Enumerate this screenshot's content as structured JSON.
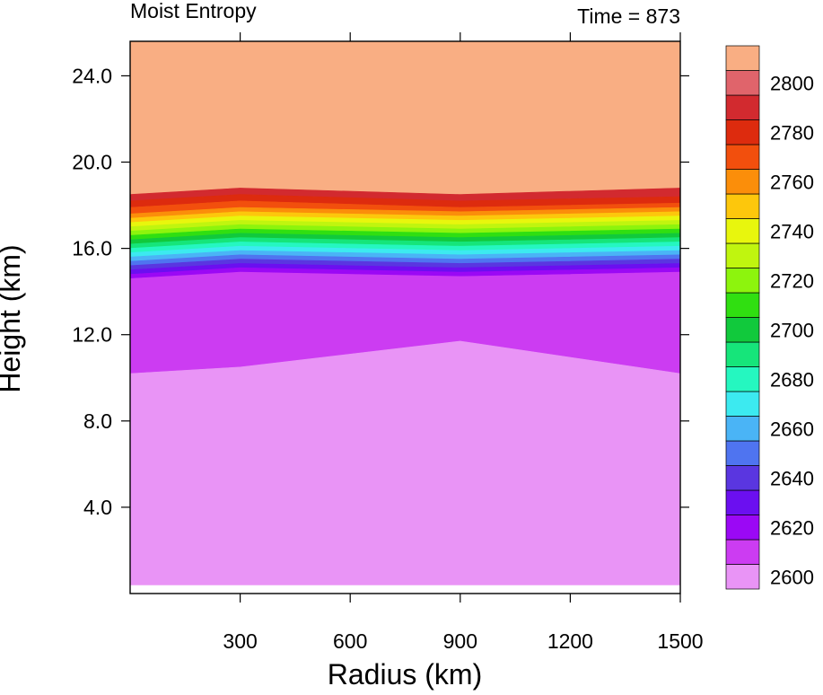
{
  "chart_data": {
    "type": "heatmap",
    "title_left": "Moist Entropy",
    "title_right": "Time = 873",
    "xlabel": "Radius (km)",
    "ylabel": "Height (km)",
    "xlim": [
      0,
      1500
    ],
    "ylim": [
      0,
      25.6
    ],
    "x_ticks": [
      {
        "value": 300,
        "label": "300"
      },
      {
        "value": 600,
        "label": "600"
      },
      {
        "value": 900,
        "label": "900"
      },
      {
        "value": 1200,
        "label": "1200"
      },
      {
        "value": 1500,
        "label": "1500"
      }
    ],
    "y_ticks": [
      {
        "value": 4,
        "label": "4.0"
      },
      {
        "value": 8,
        "label": "8.0"
      },
      {
        "value": 12,
        "label": "12.0"
      },
      {
        "value": 16,
        "label": "16.0"
      },
      {
        "value": 20,
        "label": "20.0"
      },
      {
        "value": 24,
        "label": "24.0"
      }
    ],
    "colorbar_levels": [
      {
        "color": "#e994f6",
        "label": "2600"
      },
      {
        "color": "#cc3cf2",
        "label": ""
      },
      {
        "color": "#9b08f5",
        "label": "2620"
      },
      {
        "color": "#6b0ff0",
        "label": ""
      },
      {
        "color": "#5a36e0",
        "label": "2640"
      },
      {
        "color": "#4f74f0",
        "label": ""
      },
      {
        "color": "#4ab4f6",
        "label": "2660"
      },
      {
        "color": "#3ceaf0",
        "label": ""
      },
      {
        "color": "#25f7c0",
        "label": "2680"
      },
      {
        "color": "#16e57a",
        "label": ""
      },
      {
        "color": "#11c93c",
        "label": "2700"
      },
      {
        "color": "#30df11",
        "label": ""
      },
      {
        "color": "#8df40d",
        "label": "2720"
      },
      {
        "color": "#c0f50f",
        "label": ""
      },
      {
        "color": "#e8f60d",
        "label": "2740"
      },
      {
        "color": "#fdc70c",
        "label": ""
      },
      {
        "color": "#fb8e0a",
        "label": "2760"
      },
      {
        "color": "#f24f0d",
        "label": ""
      },
      {
        "color": "#dd2b0e",
        "label": "2780"
      },
      {
        "color": "#d22a2f",
        "label": ""
      },
      {
        "color": "#e0646b",
        "label": "2800"
      },
      {
        "color": "#f9ae83",
        "label": ""
      }
    ],
    "bands": [
      {
        "level": 21,
        "rings": [
          [
            [
              0,
              25.6
            ],
            [
              1500,
              25.6
            ],
            [
              1500,
              18.8
            ],
            [
              900,
              18.5
            ],
            [
              300,
              18.8
            ],
            [
              0,
              18.5
            ]
          ]
        ]
      },
      {
        "level": 19,
        "rings": [
          [
            [
              0,
              18.5
            ],
            [
              300,
              18.8
            ],
            [
              900,
              18.5
            ],
            [
              1500,
              18.8
            ],
            [
              1500,
              18.4
            ],
            [
              900,
              18.2
            ],
            [
              300,
              18.5
            ],
            [
              0,
              18.2
            ]
          ]
        ]
      },
      {
        "level": 18,
        "rings": [
          [
            [
              0,
              18.2
            ],
            [
              300,
              18.5
            ],
            [
              900,
              18.2
            ],
            [
              1500,
              18.4
            ],
            [
              1500,
              18.1
            ],
            [
              900,
              17.9
            ],
            [
              300,
              18.2
            ],
            [
              0,
              17.9
            ]
          ]
        ]
      },
      {
        "level": 17,
        "rings": [
          [
            [
              0,
              17.9
            ],
            [
              300,
              18.2
            ],
            [
              900,
              17.9
            ],
            [
              1500,
              18.1
            ],
            [
              1500,
              17.9
            ],
            [
              900,
              17.7
            ],
            [
              300,
              17.9
            ],
            [
              0,
              17.6
            ]
          ]
        ]
      },
      {
        "level": 16,
        "rings": [
          [
            [
              0,
              17.6
            ],
            [
              300,
              17.9
            ],
            [
              900,
              17.7
            ],
            [
              1500,
              17.9
            ],
            [
              1500,
              17.7
            ],
            [
              900,
              17.5
            ],
            [
              300,
              17.7
            ],
            [
              0,
              17.4
            ]
          ]
        ]
      },
      {
        "level": 15,
        "rings": [
          [
            [
              0,
              17.4
            ],
            [
              300,
              17.7
            ],
            [
              900,
              17.5
            ],
            [
              1500,
              17.7
            ],
            [
              1500,
              17.5
            ],
            [
              900,
              17.3
            ],
            [
              300,
              17.5
            ],
            [
              0,
              17.2
            ]
          ]
        ]
      },
      {
        "level": 14,
        "rings": [
          [
            [
              0,
              17.2
            ],
            [
              300,
              17.5
            ],
            [
              900,
              17.3
            ],
            [
              1500,
              17.5
            ],
            [
              1500,
              17.3
            ],
            [
              900,
              17.1
            ],
            [
              300,
              17.3
            ],
            [
              0,
              17.0
            ]
          ]
        ]
      },
      {
        "level": 13,
        "rings": [
          [
            [
              0,
              17.0
            ],
            [
              300,
              17.3
            ],
            [
              900,
              17.1
            ],
            [
              1500,
              17.3
            ],
            [
              1500,
              17.1
            ],
            [
              900,
              16.9
            ],
            [
              300,
              17.1
            ],
            [
              0,
              16.8
            ]
          ]
        ]
      },
      {
        "level": 12,
        "rings": [
          [
            [
              0,
              16.8
            ],
            [
              300,
              17.1
            ],
            [
              900,
              16.9
            ],
            [
              1500,
              17.1
            ],
            [
              1500,
              16.9
            ],
            [
              900,
              16.7
            ],
            [
              300,
              16.9
            ],
            [
              0,
              16.6
            ]
          ]
        ]
      },
      {
        "level": 11,
        "rings": [
          [
            [
              0,
              16.6
            ],
            [
              300,
              16.9
            ],
            [
              900,
              16.7
            ],
            [
              1500,
              16.9
            ],
            [
              1500,
              16.7
            ],
            [
              900,
              16.5
            ],
            [
              300,
              16.7
            ],
            [
              0,
              16.4
            ]
          ]
        ]
      },
      {
        "level": 10,
        "rings": [
          [
            [
              0,
              16.4
            ],
            [
              300,
              16.7
            ],
            [
              900,
              16.5
            ],
            [
              1500,
              16.7
            ],
            [
              1500,
              16.5
            ],
            [
              900,
              16.3
            ],
            [
              300,
              16.5
            ],
            [
              0,
              16.2
            ]
          ]
        ]
      },
      {
        "level": 9,
        "rings": [
          [
            [
              0,
              16.2
            ],
            [
              300,
              16.5
            ],
            [
              900,
              16.3
            ],
            [
              1500,
              16.5
            ],
            [
              1500,
              16.3
            ],
            [
              900,
              16.1
            ],
            [
              300,
              16.3
            ],
            [
              0,
              16.0
            ]
          ]
        ]
      },
      {
        "level": 8,
        "rings": [
          [
            [
              0,
              16.0
            ],
            [
              300,
              16.3
            ],
            [
              900,
              16.1
            ],
            [
              1500,
              16.3
            ],
            [
              1500,
              16.1
            ],
            [
              900,
              15.9
            ],
            [
              300,
              16.1
            ],
            [
              0,
              15.8
            ]
          ]
        ]
      },
      {
        "level": 7,
        "rings": [
          [
            [
              0,
              15.8
            ],
            [
              300,
              16.1
            ],
            [
              900,
              15.9
            ],
            [
              1500,
              16.1
            ],
            [
              1500,
              15.9
            ],
            [
              900,
              15.7
            ],
            [
              300,
              15.9
            ],
            [
              0,
              15.6
            ]
          ]
        ]
      },
      {
        "level": 6,
        "rings": [
          [
            [
              0,
              15.6
            ],
            [
              300,
              15.9
            ],
            [
              900,
              15.7
            ],
            [
              1500,
              15.9
            ],
            [
              1500,
              15.7
            ],
            [
              900,
              15.5
            ],
            [
              300,
              15.7
            ],
            [
              0,
              15.4
            ]
          ]
        ]
      },
      {
        "level": 5,
        "rings": [
          [
            [
              0,
              15.4
            ],
            [
              300,
              15.7
            ],
            [
              900,
              15.5
            ],
            [
              1500,
              15.7
            ],
            [
              1500,
              15.5
            ],
            [
              900,
              15.3
            ],
            [
              300,
              15.5
            ],
            [
              0,
              15.2
            ]
          ]
        ]
      },
      {
        "level": 4,
        "rings": [
          [
            [
              0,
              15.2
            ],
            [
              300,
              15.5
            ],
            [
              900,
              15.3
            ],
            [
              1500,
              15.5
            ],
            [
              1500,
              15.3
            ],
            [
              900,
              15.1
            ],
            [
              300,
              15.3
            ],
            [
              0,
              15.0
            ]
          ]
        ]
      },
      {
        "level": 3,
        "rings": [
          [
            [
              0,
              15.0
            ],
            [
              300,
              15.3
            ],
            [
              900,
              15.1
            ],
            [
              1500,
              15.3
            ],
            [
              1500,
              15.1
            ],
            [
              900,
              14.9
            ],
            [
              300,
              15.1
            ],
            [
              0,
              14.8
            ]
          ]
        ]
      },
      {
        "level": 2,
        "rings": [
          [
            [
              0,
              14.8
            ],
            [
              300,
              15.1
            ],
            [
              900,
              14.9
            ],
            [
              1500,
              15.1
            ],
            [
              1500,
              14.9
            ],
            [
              900,
              14.7
            ],
            [
              300,
              14.9
            ],
            [
              0,
              14.6
            ]
          ]
        ]
      },
      {
        "level": 1,
        "rings": [
          [
            [
              0,
              14.6
            ],
            [
              300,
              14.9
            ],
            [
              900,
              14.7
            ],
            [
              1500,
              14.9
            ],
            [
              1500,
              10.2
            ],
            [
              900,
              11.7
            ],
            [
              300,
              10.5
            ],
            [
              0,
              10.2
            ]
          ]
        ]
      },
      {
        "level": 0,
        "rings": [
          [
            [
              0,
              10.2
            ],
            [
              300,
              10.5
            ],
            [
              900,
              11.7
            ],
            [
              1500,
              10.2
            ],
            [
              1500,
              0.4
            ],
            [
              0,
              0.4
            ]
          ]
        ]
      }
    ]
  }
}
